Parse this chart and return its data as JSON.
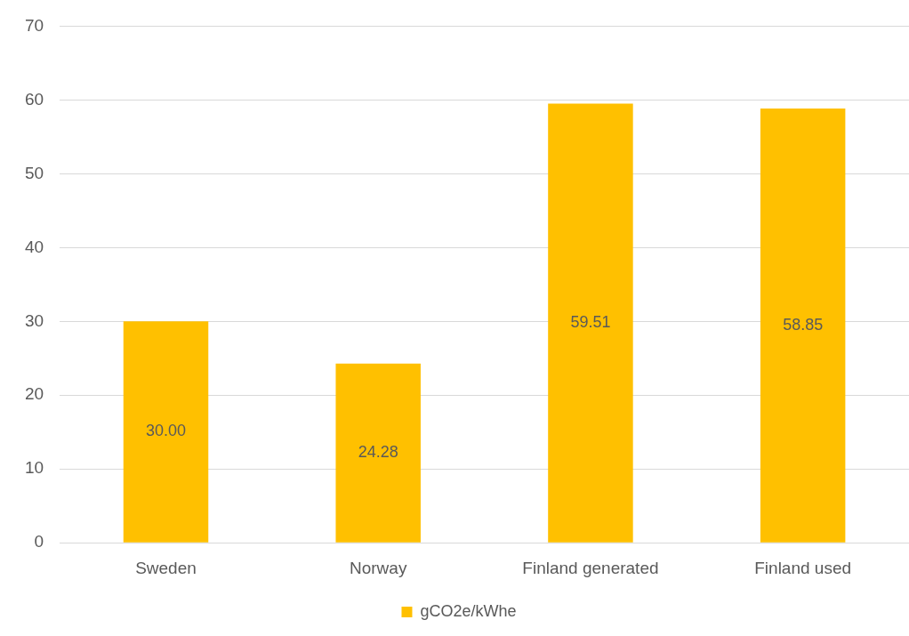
{
  "chart_data": {
    "type": "bar",
    "categories": [
      "Sweden",
      "Norway",
      "Finland generated",
      "Finland used"
    ],
    "series": [
      {
        "name": "gCO2e/kWhe",
        "color": "#ffc000",
        "values": [
          30.0,
          24.28,
          59.51,
          58.85
        ],
        "value_labels": [
          "30.00",
          "24.28",
          "59.51",
          "58.85"
        ]
      }
    ],
    "ylim": [
      0,
      70
    ],
    "yticks": [
      0,
      10,
      20,
      30,
      40,
      50,
      60,
      70
    ],
    "grid": "y",
    "legend": "bottom"
  }
}
